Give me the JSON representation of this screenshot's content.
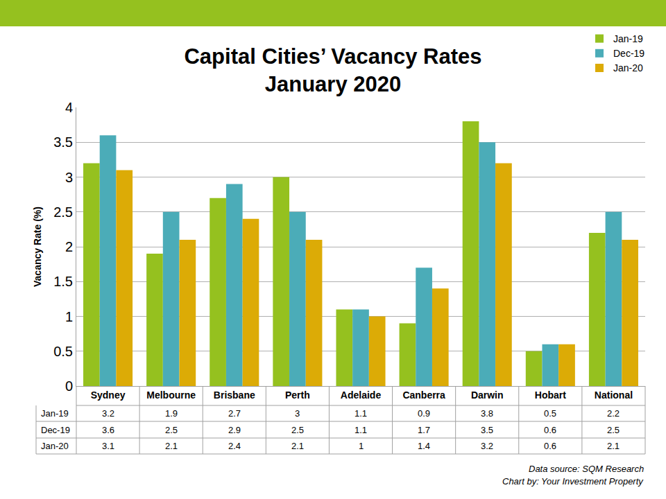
{
  "chart_data": {
    "type": "bar",
    "title": "Capital Cities’ Vacancy Rates",
    "subtitle": "January 2020",
    "y_label": "Vacancy Rate (%)",
    "categories": [
      "Sydney",
      "Melbourne",
      "Brisbane",
      "Perth",
      "Adelaide",
      "Canberra",
      "Darwin",
      "Hobart",
      "National"
    ],
    "series": [
      {
        "name": "Jan-19",
        "color": "#95c11f",
        "values": [
          3.2,
          1.9,
          2.7,
          3,
          1.1,
          0.9,
          3.8,
          0.5,
          2.2
        ]
      },
      {
        "name": "Dec-19",
        "color": "#4bacb8",
        "values": [
          3.6,
          2.5,
          2.9,
          2.5,
          1.1,
          1.7,
          3.5,
          0.6,
          2.5
        ]
      },
      {
        "name": "Jan-20",
        "color": "#dcab06",
        "values": [
          3.1,
          2.1,
          2.4,
          2.1,
          1,
          1.4,
          3.2,
          0.6,
          2.1
        ]
      }
    ],
    "ylim": [
      0,
      4
    ],
    "yticks": [
      0,
      0.5,
      1,
      1.5,
      2,
      2.5,
      3,
      3.5,
      4
    ],
    "grid": true,
    "legend": "top right",
    "annotations": [
      "Data source: SQM Research",
      "Chart by: Your Investment Property"
    ]
  }
}
